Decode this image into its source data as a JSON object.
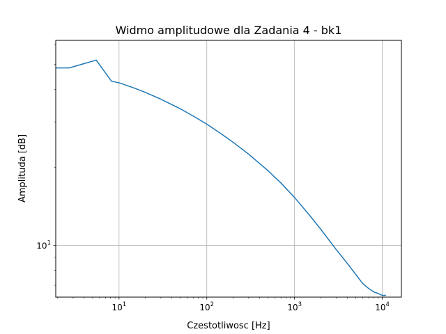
{
  "chart_data": {
    "type": "line",
    "title": "Widmo amplitudowe dla Zadania 4 - bk1",
    "xlabel": "Czestotliwosc [Hz]",
    "ylabel": "Amplituda [dB]",
    "xscale": "log",
    "yscale": "log",
    "xlim": [
      1.9,
      16500
    ],
    "ylim": [
      6.3,
      62
    ],
    "grid": true,
    "x_major_ticks": [
      {
        "value": 10,
        "base": "10",
        "exp": "1"
      },
      {
        "value": 100,
        "base": "10",
        "exp": "2"
      },
      {
        "value": 1000,
        "base": "10",
        "exp": "3"
      },
      {
        "value": 10000,
        "base": "10",
        "exp": "4"
      }
    ],
    "y_major_ticks": [
      {
        "value": 10,
        "base": "10",
        "exp": "1"
      }
    ],
    "series": [
      {
        "name": "bk1",
        "color": "#1f77b4",
        "x": [
          1.9,
          2.7,
          5.5,
          8.2,
          10,
          15,
          20,
          30,
          50,
          70,
          100,
          150,
          200,
          300,
          500,
          700,
          1000,
          1500,
          2000,
          3000,
          4000,
          5000,
          6000,
          7000,
          8000,
          9000,
          10000,
          11000
        ],
        "y": [
          48.5,
          48.5,
          52.0,
          43.1,
          42.5,
          40.5,
          39.0,
          36.7,
          33.7,
          31.6,
          29.4,
          26.8,
          25.0,
          22.5,
          19.4,
          17.4,
          15.3,
          13.0,
          11.5,
          9.6,
          8.5,
          7.7,
          7.1,
          6.8,
          6.6,
          6.5,
          6.4,
          6.4
        ]
      }
    ]
  }
}
